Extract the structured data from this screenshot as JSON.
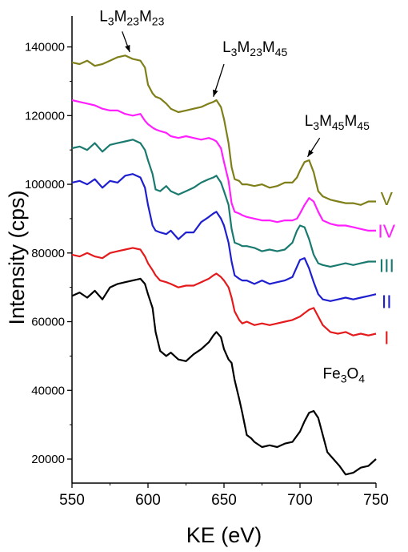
{
  "chart_data": {
    "type": "line",
    "title": "",
    "xlabel": "KE (eV)",
    "ylabel": "Intensity (cps)",
    "xlim": [
      550,
      750
    ],
    "ylim": [
      13000,
      149000
    ],
    "x_ticks": [
      550,
      600,
      650,
      700,
      750
    ],
    "y_ticks": [
      20000,
      40000,
      60000,
      80000,
      100000,
      120000,
      140000
    ],
    "grid": false,
    "series": [
      {
        "name": "Fe3O4",
        "color": "#000000",
        "x": [
          550,
          555,
          560,
          565,
          570,
          575,
          580,
          585,
          590,
          595,
          598,
          600,
          603,
          605,
          608,
          612,
          615,
          620,
          625,
          630,
          635,
          640,
          643,
          645,
          648,
          650,
          653,
          655,
          657,
          660,
          662,
          665,
          668,
          670,
          675,
          680,
          685,
          690,
          695,
          700,
          703,
          706,
          709,
          712,
          715,
          718,
          722,
          726,
          730,
          735,
          740,
          745,
          750
        ],
        "y": [
          67500,
          68500,
          67000,
          69000,
          66500,
          70000,
          71000,
          71500,
          72000,
          72500,
          71000,
          68000,
          64000,
          57000,
          51500,
          50000,
          51000,
          49000,
          48500,
          50500,
          52000,
          54000,
          56000,
          57000,
          55500,
          52000,
          49000,
          48000,
          43000,
          37500,
          33500,
          27000,
          26000,
          25000,
          23500,
          24000,
          23500,
          24500,
          25000,
          28000,
          31000,
          33500,
          34000,
          32000,
          27000,
          22000,
          20000,
          18000,
          15500,
          16000,
          17500,
          18000,
          20000
        ]
      },
      {
        "name": "I",
        "color": "#e41a1c",
        "x": [
          550,
          555,
          560,
          565,
          570,
          575,
          580,
          585,
          590,
          595,
          598,
          600,
          603,
          605,
          608,
          612,
          615,
          620,
          625,
          630,
          635,
          640,
          643,
          645,
          648,
          650,
          653,
          655,
          657,
          660,
          662,
          665,
          670,
          675,
          680,
          685,
          690,
          695,
          700,
          703,
          706,
          709,
          712,
          715,
          720,
          725,
          730,
          735,
          740,
          745,
          750
        ],
        "y": [
          79500,
          79000,
          80000,
          79000,
          78500,
          80000,
          80500,
          81000,
          81500,
          81000,
          79000,
          77000,
          75000,
          73500,
          72000,
          71500,
          71000,
          70000,
          70500,
          70500,
          71500,
          72500,
          73500,
          74000,
          73000,
          72000,
          70000,
          67000,
          63000,
          60500,
          59500,
          60000,
          59000,
          59500,
          59000,
          59500,
          60000,
          60500,
          61500,
          62500,
          63500,
          64000,
          61500,
          59000,
          57000,
          56500,
          57000,
          56000,
          56500,
          56000,
          56500
        ]
      },
      {
        "name": "II",
        "color": "#1f1fd0",
        "x": [
          550,
          555,
          560,
          565,
          570,
          575,
          580,
          585,
          590,
          595,
          598,
          600,
          603,
          605,
          608,
          612,
          615,
          620,
          625,
          630,
          635,
          640,
          643,
          645,
          648,
          650,
          653,
          655,
          657,
          660,
          662,
          665,
          670,
          675,
          680,
          685,
          690,
          695,
          698,
          700,
          703,
          706,
          709,
          712,
          715,
          720,
          725,
          730,
          735,
          740,
          745,
          750
        ],
        "y": [
          100500,
          101000,
          100000,
          101500,
          99000,
          101000,
          100500,
          102500,
          103000,
          102000,
          99000,
          94000,
          88000,
          86500,
          86000,
          85500,
          86500,
          84000,
          86000,
          86000,
          89000,
          90500,
          91500,
          92000,
          90000,
          88000,
          83000,
          77500,
          73500,
          72500,
          72000,
          72000,
          71000,
          72000,
          71000,
          71500,
          72000,
          73000,
          76000,
          78000,
          78500,
          75500,
          71500,
          68000,
          66500,
          66000,
          66500,
          67000,
          66500,
          67000,
          67500,
          68000
        ]
      },
      {
        "name": "III",
        "color": "#1a7a70",
        "x": [
          550,
          555,
          560,
          565,
          570,
          575,
          580,
          585,
          590,
          595,
          598,
          600,
          603,
          605,
          608,
          612,
          615,
          620,
          625,
          630,
          635,
          640,
          643,
          645,
          648,
          650,
          653,
          655,
          657,
          660,
          662,
          665,
          670,
          675,
          680,
          685,
          690,
          695,
          698,
          700,
          703,
          706,
          709,
          712,
          715,
          720,
          725,
          730,
          735,
          740,
          745,
          750
        ],
        "y": [
          110500,
          111000,
          110000,
          112000,
          109500,
          111500,
          112000,
          112500,
          113000,
          112000,
          110000,
          107000,
          103000,
          98500,
          98000,
          99500,
          98000,
          97000,
          98000,
          99000,
          100500,
          101500,
          102000,
          102500,
          100500,
          98000,
          94000,
          87000,
          83000,
          82500,
          82000,
          82000,
          81500,
          80500,
          81000,
          80500,
          81000,
          83000,
          86500,
          88000,
          87500,
          84000,
          79500,
          77000,
          76500,
          76000,
          76500,
          77000,
          76500,
          77000,
          77500,
          77500
        ]
      },
      {
        "name": "IV",
        "color": "#ff1fff",
        "x": [
          550,
          555,
          560,
          565,
          570,
          575,
          580,
          585,
          590,
          595,
          598,
          600,
          603,
          605,
          608,
          612,
          615,
          620,
          625,
          630,
          635,
          640,
          643,
          645,
          648,
          650,
          653,
          655,
          657,
          660,
          662,
          665,
          670,
          675,
          680,
          685,
          690,
          695,
          698,
          700,
          703,
          706,
          709,
          712,
          715,
          720,
          725,
          730,
          735,
          740,
          745,
          750
        ],
        "y": [
          124500,
          124000,
          123500,
          123000,
          122000,
          121500,
          121500,
          120500,
          120000,
          120500,
          118500,
          117500,
          116500,
          116000,
          115500,
          115000,
          114000,
          113500,
          114000,
          113500,
          113000,
          113500,
          113000,
          112500,
          110500,
          106500,
          101000,
          94500,
          92000,
          91500,
          91000,
          90500,
          90000,
          89500,
          89500,
          89000,
          89500,
          89500,
          90000,
          91500,
          94000,
          96000,
          95000,
          92000,
          89500,
          88500,
          88000,
          88000,
          87500,
          87000,
          86500,
          86500
        ]
      },
      {
        "name": "V",
        "color": "#7f7f1a",
        "x": [
          550,
          555,
          560,
          565,
          570,
          575,
          580,
          585,
          590,
          595,
          598,
          600,
          603,
          605,
          608,
          612,
          615,
          620,
          625,
          630,
          635,
          640,
          643,
          645,
          648,
          650,
          653,
          655,
          657,
          660,
          662,
          665,
          670,
          675,
          680,
          685,
          690,
          695,
          698,
          700,
          703,
          706,
          709,
          712,
          715,
          720,
          725,
          730,
          735,
          740,
          745,
          750
        ],
        "y": [
          135500,
          135000,
          136000,
          134500,
          135000,
          136000,
          137000,
          137500,
          136500,
          136000,
          134000,
          129000,
          126500,
          125500,
          125000,
          123500,
          122000,
          121000,
          121500,
          122000,
          122500,
          123500,
          124000,
          124500,
          122500,
          119000,
          112000,
          105000,
          101500,
          101000,
          100000,
          100000,
          99500,
          100000,
          99000,
          99500,
          100500,
          100500,
          102000,
          104000,
          106500,
          107000,
          103500,
          98000,
          96500,
          95500,
          95000,
          94500,
          94500,
          94000,
          95000,
          95000
        ]
      }
    ],
    "curve_labels": [
      {
        "text": "V",
        "color": "#7f7f1a",
        "x": 757,
        "y": 94000
      },
      {
        "text": "IV",
        "color": "#ff1fff",
        "x": 757,
        "y": 84500
      },
      {
        "text": "III",
        "color": "#1a7a70",
        "x": 757,
        "y": 74500
      },
      {
        "text": "II",
        "color": "#1f1fd0",
        "x": 757,
        "y": 64000
      },
      {
        "text": "I",
        "color": "#e41a1c",
        "x": 757,
        "y": 53500
      }
    ],
    "annotations": [
      {
        "label": "L3M23M23",
        "parts": [
          [
            "L",
            "b"
          ],
          [
            "3",
            "s"
          ],
          [
            "M",
            "b"
          ],
          [
            "23",
            "s"
          ],
          [
            "M",
            "b"
          ],
          [
            "23",
            "s"
          ]
        ],
        "text_x": 568,
        "text_y": 147500,
        "arrow_from": [
          583,
          144500
        ],
        "arrow_to": [
          588,
          138500
        ]
      },
      {
        "label": "L3M23M45",
        "parts": [
          [
            "L",
            "b"
          ],
          [
            "3",
            "s"
          ],
          [
            "M",
            "b"
          ],
          [
            "23",
            "s"
          ],
          [
            "M",
            "b"
          ],
          [
            "45",
            "s"
          ]
        ],
        "text_x": 649,
        "text_y": 138500,
        "arrow_from": [
          650,
          135000
        ],
        "arrow_to": [
          643,
          125500
        ]
      },
      {
        "label": "L3M45M45",
        "parts": [
          [
            "L",
            "b"
          ],
          [
            "3",
            "s"
          ],
          [
            "M",
            "b"
          ],
          [
            "45",
            "s"
          ],
          [
            "M",
            "b"
          ],
          [
            "45",
            "s"
          ]
        ],
        "text_x": 703,
        "text_y": 117000,
        "arrow_from": [
          713,
          113500
        ],
        "arrow_to": [
          705,
          108000
        ]
      },
      {
        "label": "Fe3O4",
        "parts": [
          [
            "Fe",
            "b"
          ],
          [
            "3",
            "s"
          ],
          [
            "O",
            "b"
          ],
          [
            "4",
            "s"
          ]
        ],
        "text_x": 715,
        "text_y": 43500,
        "arrow_from": null,
        "arrow_to": null
      }
    ]
  }
}
